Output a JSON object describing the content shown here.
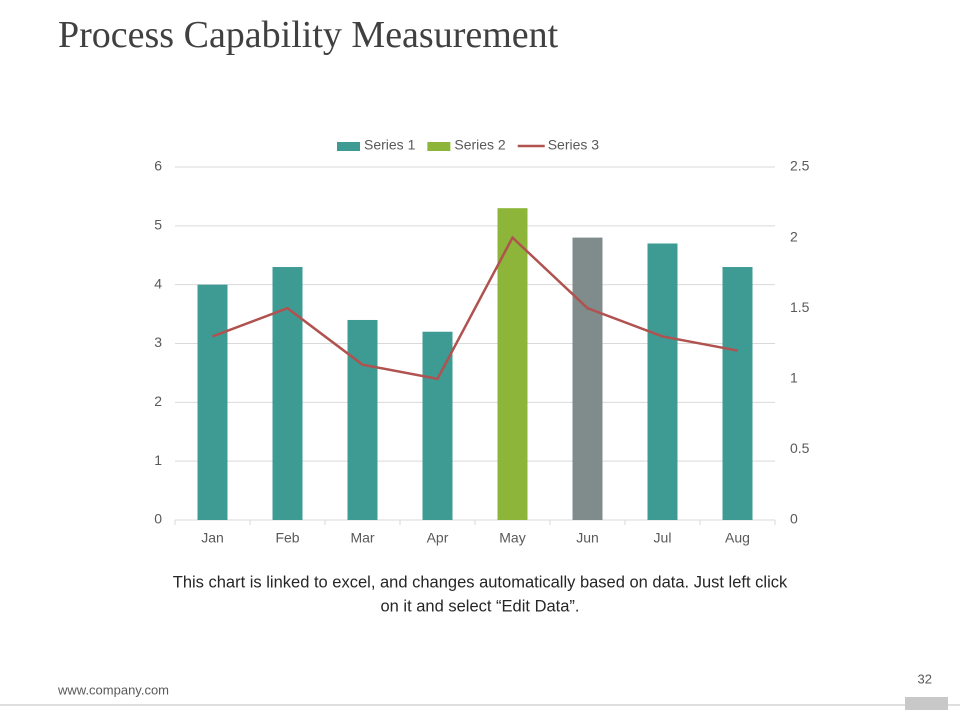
{
  "title": "Process Capability Measurement",
  "chart_data": {
    "type": "bar",
    "categories": [
      "Jan",
      "Feb",
      "Mar",
      "Apr",
      "May",
      "Jun",
      "Jul",
      "Aug"
    ],
    "series": [
      {
        "name": "Series 1",
        "color": "#3d9b94",
        "values": [
          4,
          4.3,
          3.4,
          3.2,
          null,
          4.8,
          4.7,
          4.3
        ],
        "colors": [
          "#3d9b94",
          "#3d9b94",
          "#3d9b94",
          "#3d9b94",
          null,
          "#7f8c8b",
          "#3d9b94",
          "#3d9b94"
        ]
      },
      {
        "name": "Series 2",
        "color": "#8db53a",
        "values": [
          null,
          null,
          null,
          null,
          5.3,
          null,
          null,
          null
        ]
      },
      {
        "name": "Series 3",
        "type": "line",
        "axis": "y2",
        "color": "#b0524f",
        "values": [
          1.3,
          1.5,
          1.1,
          1.0,
          2.0,
          1.5,
          1.3,
          1.2
        ]
      }
    ],
    "ylim": [
      0,
      6
    ],
    "yticks": [
      0,
      1,
      2,
      3,
      4,
      5,
      6
    ],
    "y2lim": [
      0,
      2.5
    ],
    "y2ticks": [
      0,
      0.5,
      1,
      1.5,
      2,
      2.5
    ],
    "grid": true,
    "legend": "top"
  },
  "caption": [
    "This chart is linked to excel, and changes automatically based on data. Just left click",
    "on it and select “Edit Data”."
  ],
  "footer": {
    "website": "www.company.com",
    "page_number": "32"
  }
}
